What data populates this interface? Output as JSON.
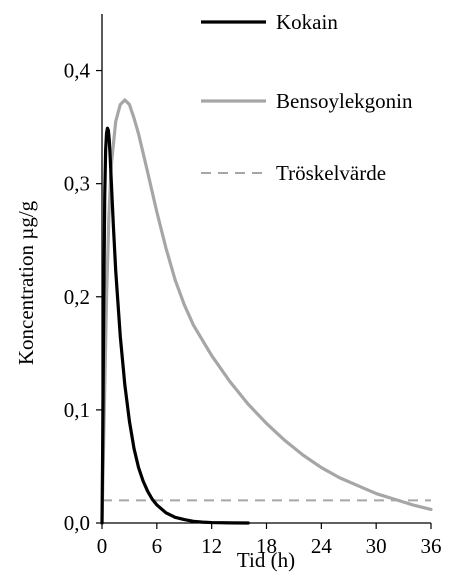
{
  "chart_data": {
    "type": "line",
    "xlabel": "Tid (h)",
    "ylabel": "Koncentration µg/g",
    "xlim": [
      0,
      36
    ],
    "ylim": [
      0,
      0.45
    ],
    "x_ticks": [
      0,
      6,
      12,
      18,
      24,
      30,
      36
    ],
    "x_tick_labels": [
      "0",
      "6",
      "12",
      "18",
      "24",
      "30",
      "36"
    ],
    "y_ticks": [
      0,
      0.1,
      0.2,
      0.3,
      0.4
    ],
    "y_tick_labels": [
      "0,0",
      "0,1",
      "0,2",
      "0,3",
      "0,4"
    ],
    "grid": false,
    "legend_position": "top-right",
    "series": [
      {
        "name": "Kokain",
        "color": "#000000",
        "style": "solid",
        "x": [
          0,
          0.1,
          0.2,
          0.3,
          0.4,
          0.5,
          0.6,
          0.7,
          0.8,
          0.9,
          1.0,
          1.25,
          1.5,
          2,
          2.5,
          3,
          3.5,
          4,
          4.5,
          5,
          5.5,
          6,
          7,
          8,
          9,
          10,
          11,
          12,
          14,
          16
        ],
        "y": [
          0,
          0.09,
          0.2,
          0.29,
          0.33,
          0.345,
          0.349,
          0.347,
          0.338,
          0.323,
          0.305,
          0.262,
          0.223,
          0.165,
          0.122,
          0.09,
          0.066,
          0.049,
          0.037,
          0.028,
          0.021,
          0.016,
          0.009,
          0.005,
          0.003,
          0.0015,
          0.0008,
          0.0004,
          0.0001,
          0
        ]
      },
      {
        "name": "Bensoylekgonin",
        "color": "#a6a6a6",
        "style": "solid",
        "x": [
          0,
          0.25,
          0.5,
          0.75,
          1.0,
          1.5,
          2.0,
          2.5,
          3.0,
          3.5,
          4,
          5,
          6,
          7,
          8,
          9,
          10,
          12,
          14,
          16,
          18,
          20,
          22,
          24,
          26,
          28,
          30,
          32,
          34,
          36
        ],
        "y": [
          0,
          0.1,
          0.2,
          0.27,
          0.315,
          0.355,
          0.37,
          0.374,
          0.37,
          0.358,
          0.344,
          0.31,
          0.275,
          0.243,
          0.215,
          0.193,
          0.175,
          0.148,
          0.125,
          0.105,
          0.088,
          0.073,
          0.06,
          0.049,
          0.04,
          0.033,
          0.026,
          0.021,
          0.016,
          0.012
        ]
      },
      {
        "name": "Tröskelvärde",
        "color": "#a6a6a6",
        "style": "dashed",
        "x": [
          0,
          36
        ],
        "y": [
          0.02,
          0.02
        ]
      }
    ]
  }
}
